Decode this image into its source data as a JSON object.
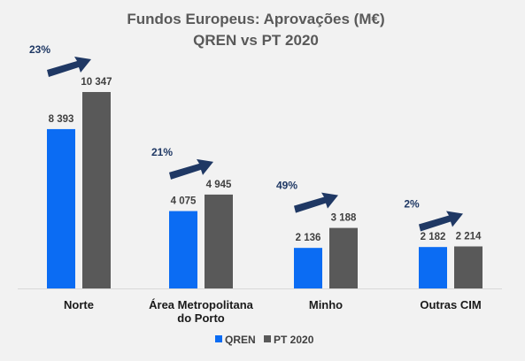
{
  "chart_data": {
    "type": "bar",
    "title": "Fundos Europeus: Aprovações (M€)",
    "subtitle": "QREN vs PT 2020",
    "categories": [
      [
        "Norte"
      ],
      [
        "Área Metropolitana",
        "do Porto"
      ],
      [
        "Minho"
      ],
      [
        "Outras CIM"
      ]
    ],
    "series": [
      {
        "name": "QREN",
        "color": "#0b6cf3",
        "values": [
          8393,
          4075,
          2136,
          2182
        ],
        "labels": [
          "8 393",
          "4 075",
          "2 136",
          "2 182"
        ]
      },
      {
        "name": "PT 2020",
        "color": "#595959",
        "values": [
          10347,
          4945,
          3188,
          2214
        ],
        "labels": [
          "10 347",
          "4 945",
          "3 188",
          "2 214"
        ]
      }
    ],
    "growth": [
      "23%",
      "21%",
      "49%",
      "2%"
    ],
    "growth_arrow_color": "#1f3864",
    "ylim": [
      0,
      11000
    ],
    "grid": false,
    "legend_position": "bottom"
  }
}
